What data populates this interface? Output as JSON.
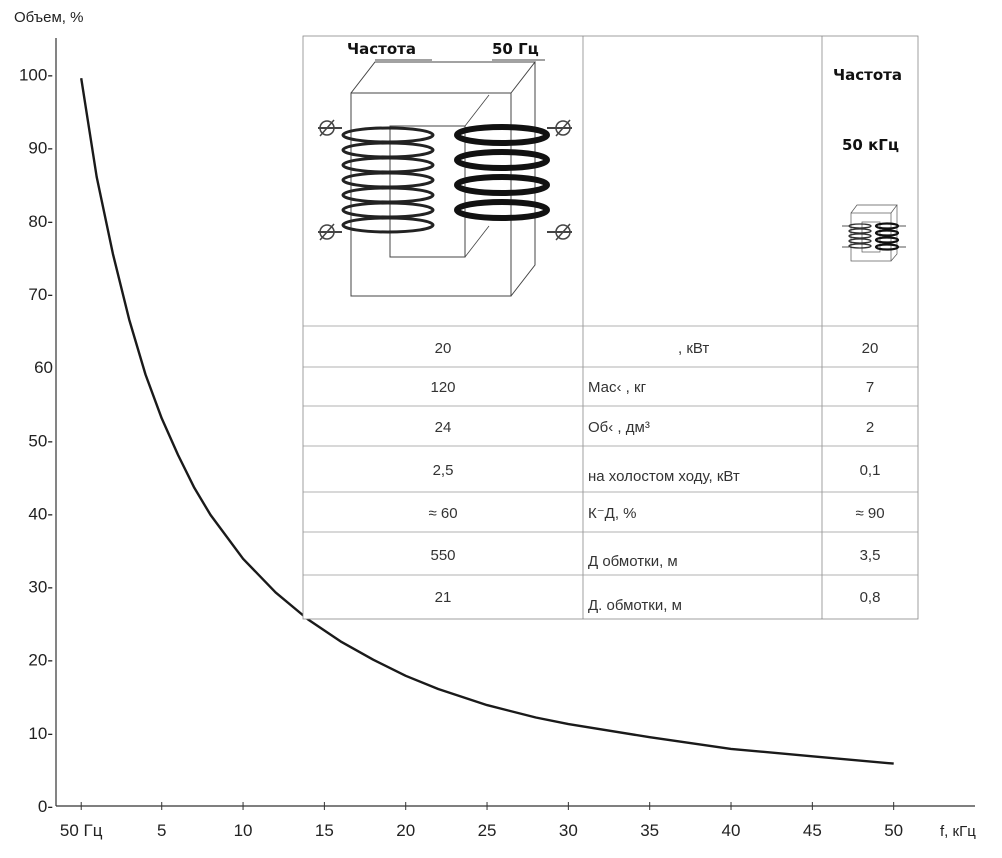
{
  "chart_data": {
    "type": "line",
    "xlabel": "f, кГц",
    "ylabel": "Объем, %",
    "x_tick_labels": [
      "50 Гц",
      "5",
      "10",
      "15",
      "20",
      "25",
      "30",
      "35",
      "40",
      "45",
      "50"
    ],
    "x_ticks": [
      0.05,
      5,
      10,
      15,
      20,
      25,
      30,
      35,
      40,
      45,
      50
    ],
    "y_tick_labels": [
      "0-",
      "10-",
      "20-",
      "30-",
      "40-",
      "50-",
      "60",
      "70-",
      "80-",
      "90-",
      "100-"
    ],
    "y_ticks": [
      0,
      10,
      20,
      30,
      40,
      50,
      60,
      70,
      80,
      90,
      100
    ],
    "xlim": [
      -1.5,
      55
    ],
    "ylim": [
      0,
      105
    ],
    "grid": false,
    "series": [
      {
        "x": [
          0.05,
          1,
          2,
          3,
          4,
          5,
          6,
          7,
          8,
          10,
          12,
          14,
          16,
          18,
          20,
          22,
          25,
          28,
          30,
          35,
          40,
          45,
          50
        ],
        "y": [
          99.5,
          86,
          75.5,
          66.5,
          59,
          53,
          48,
          43.5,
          39.8,
          33.8,
          29.2,
          25.5,
          22.5,
          20,
          17.8,
          16,
          13.8,
          12.1,
          11.2,
          9.4,
          7.8,
          6.8,
          5.8
        ],
        "color": "#1a1a1a"
      }
    ],
    "inset_table": {
      "header": {
        "left_title": "Частота",
        "left_value": "50 Гц",
        "right_title": "Частота",
        "right_value": "50 кГц"
      },
      "rows": [
        {
          "left": "20",
          "param": ", кВт",
          "right": "20"
        },
        {
          "left": "120",
          "param": "Мас‹ , кг",
          "right": "7"
        },
        {
          "left": "24",
          "param": "Об‹ , дм³",
          "right": "2"
        },
        {
          "left": "2,5",
          "param": "на холостом ходу, кВт",
          "right": "0,1"
        },
        {
          "left": "≈ 60",
          "param": "К⁻Д, %",
          "right": "≈ 90"
        },
        {
          "left": "550",
          "param": "Д обмотки, м",
          "right": "3,5"
        },
        {
          "left": "21",
          "param": "Д. обмотки, м",
          "right": "0,8"
        }
      ]
    }
  }
}
